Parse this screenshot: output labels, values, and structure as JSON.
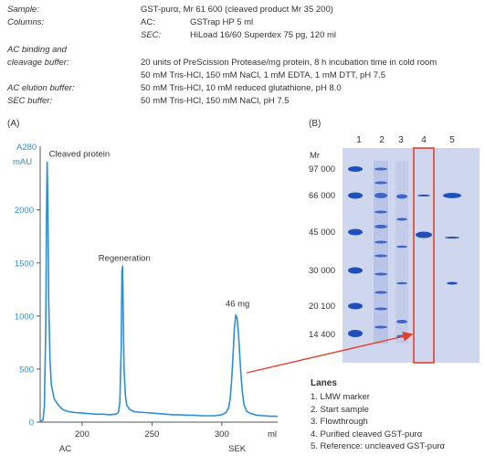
{
  "header": {
    "sample_label": "Sample:",
    "sample_value": "GST-purα, Mr 61 600 (cleaved product Mr 35 200)",
    "columns_label": "Columns:",
    "ac_label": "AC:",
    "ac_value": "GSTrap HP 5 ml",
    "sec_label": "SEC:",
    "sec_value": "HiLoad 16/60 Superdex 75 pg, 120 ml",
    "binding_label_1": "AC binding and",
    "binding_label_2": "cleavage buffer:",
    "binding_value_1": "20 units of PreScission Protease/mg protein, 8 h incubation time in cold room",
    "binding_value_2": "50 mM Tris-HCl, 150 mM NaCl, 1 mM EDTA, 1 mM DTT, pH 7.5",
    "elution_label": "AC elution buffer:",
    "elution_value": "50 mM Tris-HCl, 10 mM reduced glutathione, pH 8.0",
    "sec_buffer_label": "SEC buffer:",
    "sec_buffer_value": "50 mM Tris-HCl, 150 mM NaCl, pH 7.5"
  },
  "panel_a_label": "(A)",
  "panel_b_label": "(B)",
  "colors": {
    "trace": "#2b8fd8",
    "axis": "#555555",
    "highlight": "#e2402a",
    "gel_bg": "#cfd7ee",
    "band": "#1f4fbd"
  },
  "chart_data": {
    "type": "line",
    "ylabel": "A280 mAU",
    "xlabel": "ml",
    "xlim": [
      170,
      340
    ],
    "ylim": [
      0,
      2600
    ],
    "x_ticks": [
      200,
      250,
      300
    ],
    "y_ticks": [
      0,
      500,
      1000,
      1500,
      2000
    ],
    "region_labels": [
      {
        "text": "AC",
        "x": 188
      },
      {
        "text": "SEK",
        "x": 311
      }
    ],
    "annotations": [
      {
        "text": "Cleaved protein",
        "x": 175,
        "y": 2500
      },
      {
        "text": "Regeneration",
        "x": 229,
        "y": 1520
      },
      {
        "text": "46 mg",
        "x": 310,
        "y": 1090
      }
    ],
    "series": [
      {
        "x": [
          170,
          172,
          173,
          174,
          174.5,
          175,
          175.5,
          176,
          177,
          178,
          180,
          183,
          186,
          190,
          195,
          200,
          205,
          210,
          215,
          220,
          224,
          226,
          227,
          228,
          228.5,
          229,
          229.5,
          230,
          231,
          232,
          234,
          237,
          240,
          245,
          250,
          255,
          260,
          265,
          270,
          275,
          280,
          285,
          290,
          295,
          300,
          303,
          305,
          306,
          307,
          308,
          309,
          310,
          311,
          312,
          313,
          314,
          315,
          316,
          318,
          321,
          325,
          330,
          335,
          340
        ],
        "y": [
          5,
          20,
          150,
          900,
          1900,
          2450,
          2100,
          1200,
          600,
          350,
          220,
          160,
          120,
          100,
          90,
          85,
          80,
          75,
          75,
          70,
          75,
          90,
          180,
          700,
          1420,
          1470,
          1000,
          500,
          250,
          160,
          120,
          100,
          95,
          90,
          85,
          80,
          75,
          70,
          70,
          65,
          65,
          60,
          60,
          60,
          70,
          90,
          140,
          220,
          380,
          620,
          880,
          1010,
          980,
          820,
          600,
          400,
          250,
          160,
          100,
          80,
          65,
          60,
          55,
          55
        ]
      }
    ]
  },
  "gel": {
    "lane_numbers": [
      "1",
      "2",
      "3",
      "4",
      "5"
    ],
    "mr_label": "Mr",
    "markers": [
      "97 000",
      "66 000",
      "45 000",
      "30 000",
      "20 100",
      "14 400"
    ]
  },
  "lanes": {
    "title": "Lanes",
    "items": [
      "1.  LMW marker",
      "2.  Start sample",
      "3.  Flowthrough",
      "4.  Purified cleaved GST-purα",
      "5.  Reference: uncleaved GST-purα"
    ]
  }
}
